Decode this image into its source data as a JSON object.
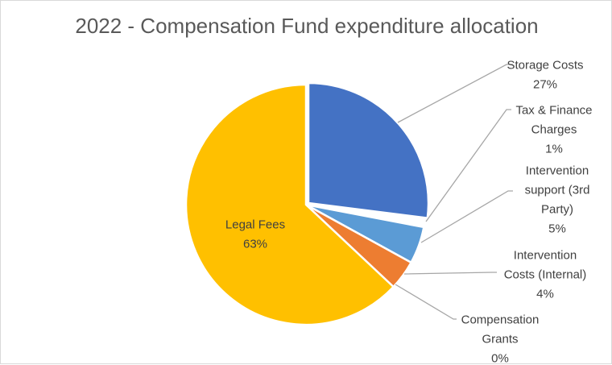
{
  "chart_data": {
    "type": "pie",
    "title": "2022 - Compensation Fund expenditure allocation",
    "slices": [
      {
        "name": "Storage Costs",
        "label_lines": [
          "Storage Costs",
          "27%"
        ],
        "value": 27,
        "color": "#4472C4"
      },
      {
        "name": "Tax & Finance Charges",
        "label_lines": [
          "Tax & Finance",
          "Charges",
          "1%"
        ],
        "value": 1,
        "color": "#FFFFFF"
      },
      {
        "name": "Intervention support (3rd Party)",
        "label_lines": [
          "Intervention",
          "support (3rd",
          "Party)",
          "5%"
        ],
        "value": 5,
        "color": "#5B9BD5"
      },
      {
        "name": "Intervention Costs (Internal)",
        "label_lines": [
          "Intervention",
          "Costs (Internal)",
          "4%"
        ],
        "value": 4,
        "color": "#ED7D31"
      },
      {
        "name": "Compensation Grants",
        "label_lines": [
          "Compensation",
          "Grants",
          "0%"
        ],
        "value": 0,
        "color": "#A5A5A5"
      },
      {
        "name": "Legal Fees",
        "label_lines": [
          "Legal Fees",
          "63%"
        ],
        "value": 63,
        "color": "#FFC000"
      }
    ],
    "legend": "none"
  }
}
